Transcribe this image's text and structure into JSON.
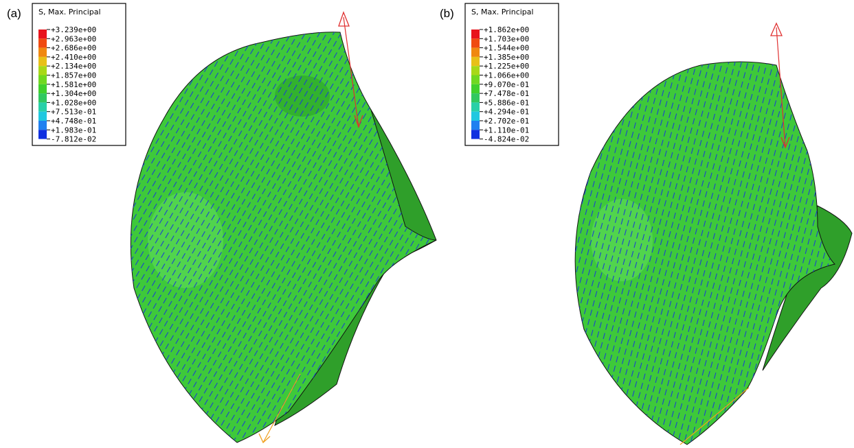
{
  "panels": [
    {
      "label": "(a)",
      "legend": {
        "title": "S, Max. Principal",
        "labels": [
          "+3.239e+00",
          "+2.963e+00",
          "+2.686e+00",
          "+2.410e+00",
          "+2.134e+00",
          "+1.857e+00",
          "+1.581e+00",
          "+1.304e+00",
          "+1.028e+00",
          "+7.513e-01",
          "+4.748e-01",
          "+1.983e-01",
          "-7.812e-02"
        ]
      }
    },
    {
      "label": "(b)",
      "legend": {
        "title": "S, Max. Principal",
        "labels": [
          "+1.862e+00",
          "+1.703e+00",
          "+1.544e+00",
          "+1.385e+00",
          "+1.225e+00",
          "+1.066e+00",
          "+9.070e-01",
          "+7.478e-01",
          "+5.886e-01",
          "+4.294e-01",
          "+2.702e-01",
          "+1.110e-01",
          "-4.824e-02"
        ]
      }
    }
  ]
}
